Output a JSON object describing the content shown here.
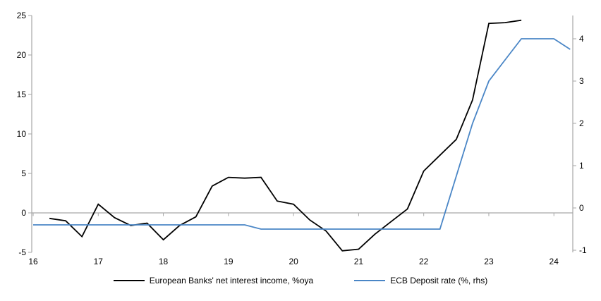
{
  "chart_data": {
    "type": "line",
    "title": "",
    "legend_position": "bottom-center",
    "x_axis": {
      "tick_labels": [
        "16",
        "17",
        "18",
        "19",
        "20",
        "21",
        "22",
        "23",
        "24"
      ],
      "tick_values": [
        16,
        17,
        18,
        19,
        20,
        21,
        22,
        23,
        24
      ],
      "range": [
        16,
        24.29
      ],
      "ticks_on_zero_line": true
    },
    "left_axis": {
      "tick_values": [
        -5,
        0,
        5,
        10,
        15,
        20,
        25
      ],
      "tick_labels": [
        "-5",
        "0",
        "5",
        "10",
        "15",
        "20",
        "25"
      ],
      "range": [
        -5,
        25
      ],
      "zero_gridline": true
    },
    "right_axis": {
      "tick_values": [
        -1,
        0,
        1,
        2,
        3,
        4
      ],
      "tick_labels": [
        "-1",
        "0",
        "1",
        "2",
        "3",
        "4"
      ],
      "range": [
        -1.05,
        4.55
      ]
    },
    "series": [
      {
        "name": "European Banks' net interest income, %oya",
        "axis": "left",
        "color": "#000000",
        "x_start": 16.25,
        "x_step": 0.25,
        "values": [
          -0.7,
          -1.0,
          -3.0,
          1.1,
          -0.6,
          -1.6,
          -1.3,
          -3.4,
          -1.6,
          -0.5,
          3.4,
          4.5,
          4.4,
          4.5,
          1.5,
          1.1,
          -0.9,
          -2.3,
          -4.8,
          -4.6,
          -2.7,
          -1.1,
          0.5,
          5.3,
          7.3,
          9.3,
          14.3,
          24.0,
          24.1,
          24.4
        ]
      },
      {
        "name": "ECB Deposit rate (%, rhs)",
        "axis": "right",
        "color": "#4a86c6",
        "x_start": 16.0,
        "x_step": 0.25,
        "values": [
          -0.4,
          -0.4,
          -0.4,
          -0.4,
          -0.4,
          -0.4,
          -0.4,
          -0.4,
          -0.4,
          -0.4,
          -0.4,
          -0.4,
          -0.4,
          -0.4,
          -0.5,
          -0.5,
          -0.5,
          -0.5,
          -0.5,
          -0.5,
          -0.5,
          -0.5,
          -0.5,
          -0.5,
          -0.5,
          -0.5,
          0.75,
          2.0,
          3.0,
          3.5,
          4.0,
          4.0,
          4.0,
          3.75
        ]
      }
    ],
    "colors": {
      "axis": "#a6a6a6",
      "zero_line": "#a6a6a6",
      "tick_label": "#000000"
    }
  }
}
